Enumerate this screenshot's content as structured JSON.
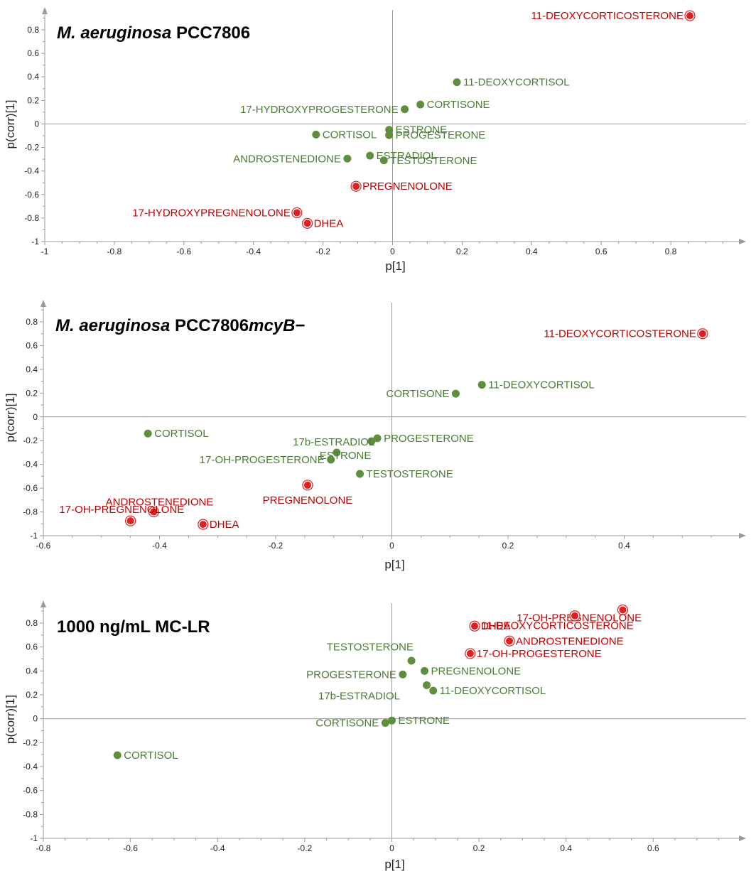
{
  "colors": {
    "green": "#5f8f3e",
    "green_label": "#4a7a34",
    "red": "#e02020",
    "red_label": "#c00000",
    "axis": "#999999"
  },
  "chart_data": [
    {
      "type": "scatter",
      "title_italic": "M. aeruginosa",
      "title_rest": " PCC7806",
      "xlabel": "p[1]",
      "ylabel": "p(corr)[1]",
      "xlim": [
        -1,
        1
      ],
      "ylim": [
        -1,
        0.95
      ],
      "xticks": [
        -1,
        -0.8,
        -0.6,
        -0.4,
        -0.2,
        0,
        0.2,
        0.4,
        0.6,
        0.8
      ],
      "xtick_labels": [
        "-1",
        "-0.8",
        "-0.6",
        "-0.4",
        "-0.2",
        "0",
        "0.2",
        "0.4",
        "0.6",
        "0.8"
      ],
      "yticks": [
        -1,
        -0.8,
        -0.6,
        -0.4,
        -0.2,
        0,
        0.2,
        0.4,
        0.6,
        0.8
      ],
      "ytick_labels": [
        "-1",
        "-0.8",
        "-0.6",
        "-0.4",
        "-0.2",
        "0",
        "0.2",
        "0.4",
        "0.6",
        "0.8"
      ],
      "points": [
        {
          "label": "11-DEOXYCORTICOSTERONE",
          "x": 0.855,
          "y": 0.92,
          "highlight": true,
          "side": "left"
        },
        {
          "label": "11-DEOXYCORTISOL",
          "x": 0.185,
          "y": 0.355,
          "highlight": false,
          "side": "right"
        },
        {
          "label": "CORTISONE",
          "x": 0.08,
          "y": 0.165,
          "highlight": false,
          "side": "right"
        },
        {
          "label": "17-HYDROXYPROGESTERONE",
          "x": 0.035,
          "y": 0.125,
          "highlight": false,
          "side": "left"
        },
        {
          "label": "ESTRONE",
          "x": -0.01,
          "y": -0.05,
          "highlight": false,
          "side": "right"
        },
        {
          "label": "PROGESTERONE",
          "x": -0.01,
          "y": -0.095,
          "highlight": false,
          "side": "right"
        },
        {
          "label": "CORTISOL",
          "x": -0.22,
          "y": -0.09,
          "highlight": false,
          "side": "right"
        },
        {
          "label": "ESTRADIOL",
          "x": -0.065,
          "y": -0.27,
          "highlight": false,
          "side": "right"
        },
        {
          "label": "TESTOSTERONE",
          "x": -0.025,
          "y": -0.31,
          "highlight": false,
          "side": "right"
        },
        {
          "label": "ANDROSTENEDIONE",
          "x": -0.13,
          "y": -0.295,
          "highlight": false,
          "side": "left"
        },
        {
          "label": "PREGNENOLONE",
          "x": -0.105,
          "y": -0.53,
          "highlight": true,
          "side": "right"
        },
        {
          "label": "17-HYDROXYPREGNENOLONE",
          "x": -0.275,
          "y": -0.755,
          "highlight": true,
          "side": "left"
        },
        {
          "label": "DHEA",
          "x": -0.245,
          "y": -0.845,
          "highlight": true,
          "side": "right"
        }
      ]
    },
    {
      "type": "scatter",
      "title_italic": "M. aeruginosa",
      "title_rest": " PCC7806",
      "title_italic2": "mcyB",
      "title_rest2": "−",
      "xlabel": "p[1]",
      "ylabel": "p(corr)[1]",
      "xlim": [
        -0.6,
        0.6
      ],
      "ylim": [
        -1,
        0.95
      ],
      "xticks": [
        -0.6,
        -0.4,
        -0.2,
        0,
        0.2,
        0.4
      ],
      "xtick_labels": [
        "-0.6",
        "-0.4",
        "-0.2",
        "0",
        "0.2",
        "0.4"
      ],
      "yticks": [
        -1,
        -0.8,
        -0.6,
        -0.4,
        -0.2,
        0,
        0.2,
        0.4,
        0.6,
        0.8
      ],
      "ytick_labels": [
        "-1",
        "-0.8",
        "-0.6",
        "-0.4",
        "-0.2",
        "0",
        "0.2",
        "0.4",
        "0.6",
        "0.8"
      ],
      "points": [
        {
          "label": "11-DEOXYCORTICOSTERONE",
          "x": 0.535,
          "y": 0.7,
          "highlight": true,
          "side": "left"
        },
        {
          "label": "11-DEOXYCORTISOL",
          "x": 0.155,
          "y": 0.27,
          "highlight": false,
          "side": "right"
        },
        {
          "label": "CORTISONE",
          "x": 0.11,
          "y": 0.195,
          "highlight": false,
          "side": "left"
        },
        {
          "label": "CORTISOL",
          "x": -0.42,
          "y": -0.14,
          "highlight": false,
          "side": "right"
        },
        {
          "label": "PROGESTERONE",
          "x": -0.025,
          "y": -0.18,
          "highlight": false,
          "side": "right"
        },
        {
          "label": "17b-ESTRADIOL",
          "x": -0.035,
          "y": -0.205,
          "highlight": false,
          "side": "custom",
          "lx": -0.1,
          "ly": -0.21
        },
        {
          "label": "ESTRONE",
          "x": -0.095,
          "y": -0.3,
          "highlight": false,
          "side": "custom",
          "lx": -0.08,
          "ly": -0.325
        },
        {
          "label": "17-OH-PROGESTERONE",
          "x": -0.105,
          "y": -0.36,
          "highlight": false,
          "side": "left"
        },
        {
          "label": "TESTOSTERONE",
          "x": -0.055,
          "y": -0.48,
          "highlight": false,
          "side": "right"
        },
        {
          "label": "PREGNENOLONE",
          "x": -0.145,
          "y": -0.575,
          "highlight": true,
          "side": "below"
        },
        {
          "label": "ANDROSTENEDIONE",
          "x": -0.41,
          "y": -0.8,
          "highlight": true,
          "side": "custom",
          "lx": -0.4,
          "ly": -0.715
        },
        {
          "label": "17-OH-PREGNENOLONE",
          "x": -0.45,
          "y": -0.875,
          "highlight": true,
          "side": "custom",
          "lx": -0.465,
          "ly": -0.78
        },
        {
          "label": "DHEA",
          "x": -0.325,
          "y": -0.905,
          "highlight": true,
          "side": "right"
        }
      ]
    },
    {
      "type": "scatter",
      "title_bold": "1000 ng/mL MC-LR",
      "xlabel": "p[1]",
      "ylabel": "p(corr)[1]",
      "xlim": [
        -0.8,
        0.8
      ],
      "ylim": [
        -1,
        0.95
      ],
      "xticks": [
        -0.8,
        -0.6,
        -0.4,
        -0.2,
        0,
        0.2,
        0.4,
        0.6
      ],
      "xtick_labels": [
        "-0.8",
        "-0.6",
        "-0.4",
        "-0.2",
        "0",
        "0.2",
        "0.4",
        "0.6"
      ],
      "yticks": [
        -1,
        -0.8,
        -0.6,
        -0.4,
        -0.2,
        0,
        0.2,
        0.4,
        0.6,
        0.8
      ],
      "ytick_labels": [
        "-1",
        "-0.8",
        "-0.6",
        "-0.4",
        "-0.2",
        "0",
        "0.2",
        "0.4",
        "0.6",
        "0.8"
      ],
      "points": [
        {
          "label": "17-OH-PREGNENOLONE",
          "x": 0.53,
          "y": 0.91,
          "highlight": true,
          "side": "custom",
          "lx": 0.43,
          "ly": 0.845
        },
        {
          "label": "11-DEOXYCORTICOSTERONE",
          "x": 0.42,
          "y": 0.86,
          "highlight": true,
          "side": "custom",
          "lx": 0.38,
          "ly": 0.78
        },
        {
          "label": "DHEA",
          "x": 0.19,
          "y": 0.775,
          "highlight": true,
          "side": "right"
        },
        {
          "label": "ANDROSTENEDIONE",
          "x": 0.27,
          "y": 0.65,
          "highlight": true,
          "side": "right"
        },
        {
          "label": "17-OH-PROGESTERONE",
          "x": 0.18,
          "y": 0.545,
          "highlight": true,
          "side": "right"
        },
        {
          "label": "TESTOSTERONE",
          "x": 0.045,
          "y": 0.485,
          "highlight": false,
          "side": "custom",
          "lx": -0.05,
          "ly": 0.6
        },
        {
          "label": "PREGNENOLONE",
          "x": 0.075,
          "y": 0.4,
          "highlight": false,
          "side": "right"
        },
        {
          "label": "PROGESTERONE",
          "x": 0.025,
          "y": 0.37,
          "highlight": false,
          "side": "left"
        },
        {
          "label": "17b-ESTRADIOL",
          "x": 0.08,
          "y": 0.28,
          "highlight": false,
          "side": "custom",
          "lx": -0.075,
          "ly": 0.19
        },
        {
          "label": "11-DEOXYCORTISOL",
          "x": 0.095,
          "y": 0.235,
          "highlight": false,
          "side": "right"
        },
        {
          "label": "CORTISONE",
          "x": -0.015,
          "y": -0.035,
          "highlight": false,
          "side": "left"
        },
        {
          "label": "ESTRONE",
          "x": 0.0,
          "y": -0.015,
          "highlight": false,
          "side": "right"
        },
        {
          "label": "CORTISOL",
          "x": -0.63,
          "y": -0.305,
          "highlight": false,
          "side": "right"
        }
      ]
    }
  ]
}
